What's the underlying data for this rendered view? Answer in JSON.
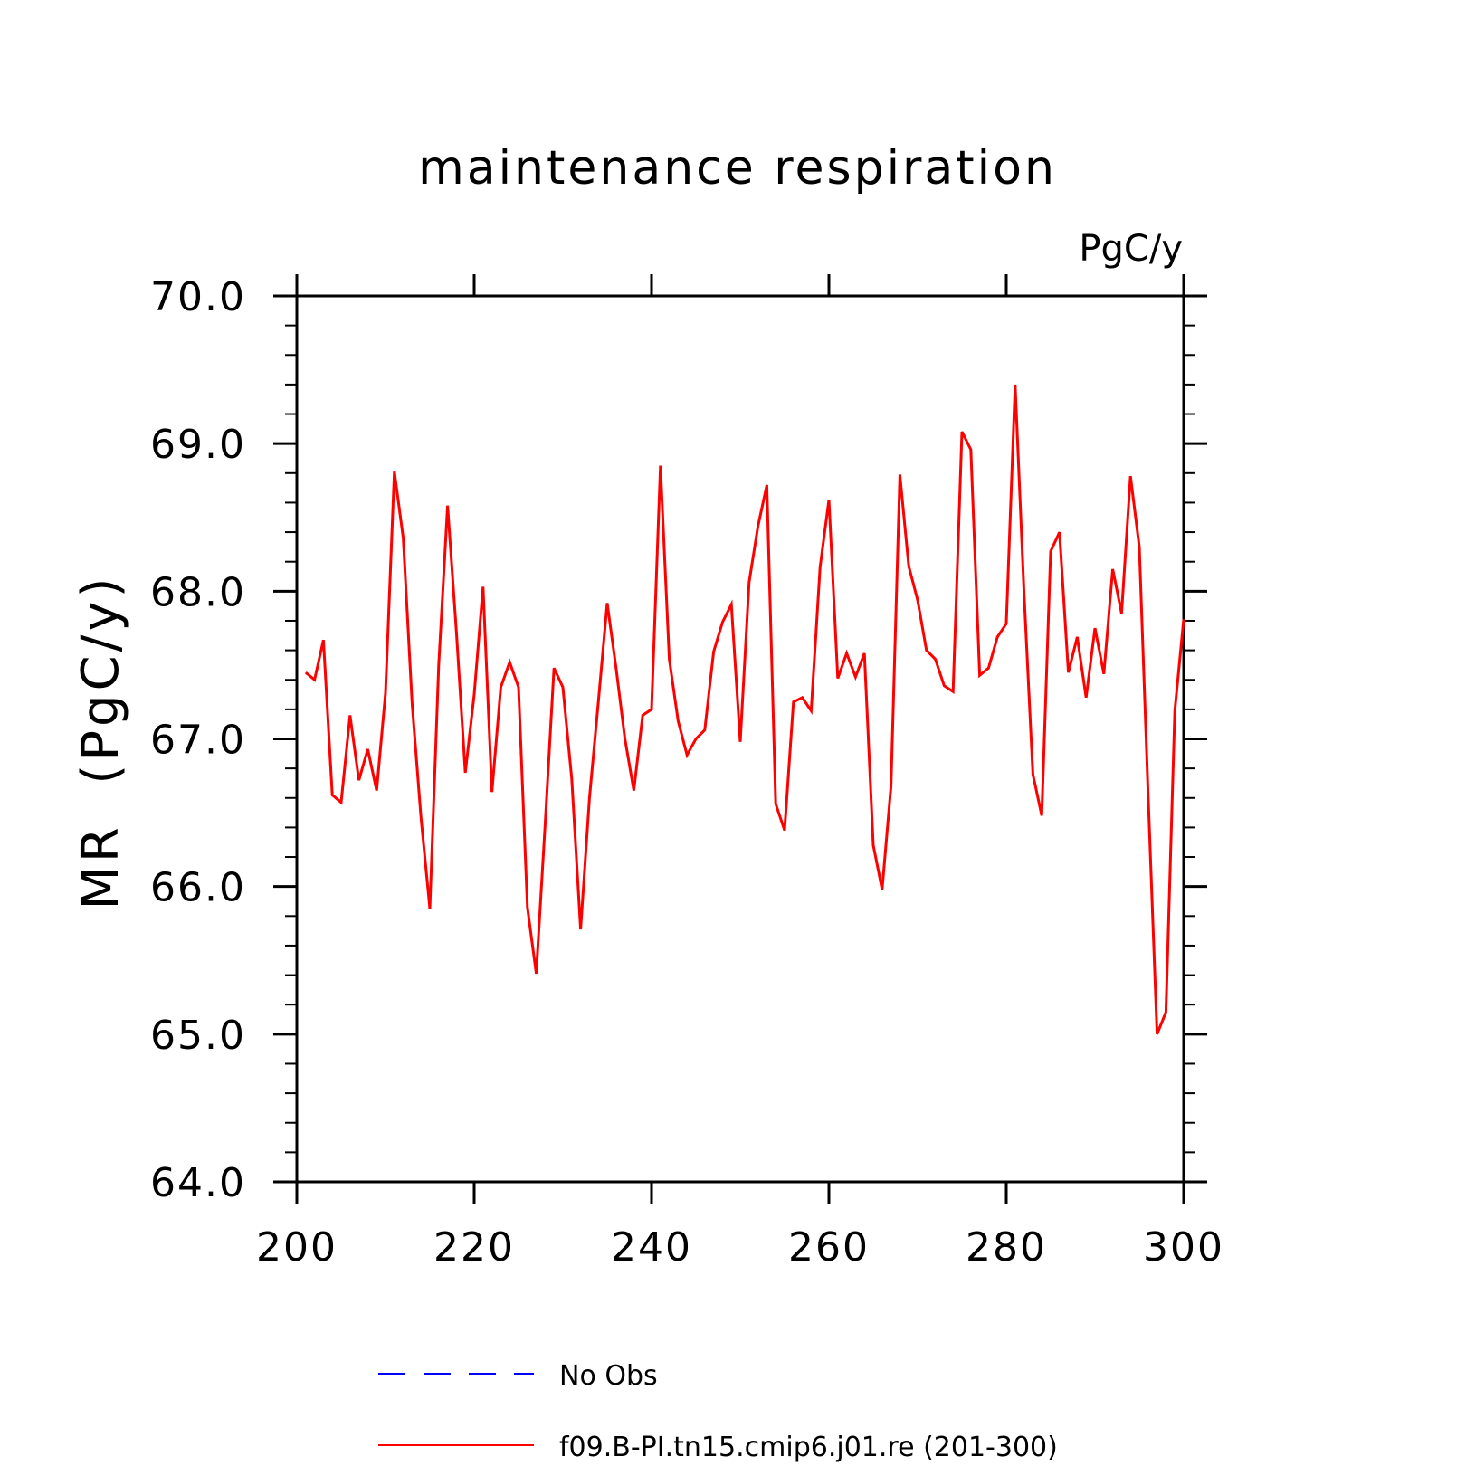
{
  "chart_data": {
    "type": "line",
    "title": "maintenance respiration",
    "units": "PgC/y",
    "ylabel": "MR  (PgC/y)",
    "xlabel": "",
    "xlim": [
      200,
      300
    ],
    "ylim": [
      64.0,
      70.0
    ],
    "x_ticks": [
      "200",
      "220",
      "240",
      "260",
      "280",
      "300"
    ],
    "y_ticks": [
      "64.0",
      "65.0",
      "66.0",
      "67.0",
      "68.0",
      "69.0",
      "70.0"
    ],
    "grid": false,
    "legend_position": "bottom",
    "series": [
      {
        "name": "No Obs",
        "color": "#0000ff",
        "dash": "dashed",
        "x": [],
        "y": []
      },
      {
        "name": "f09.B-PI.tn15.cmip6.j01.re (201-300)",
        "color": "#ff0000",
        "dash": "solid",
        "x": [
          201,
          202,
          203,
          204,
          205,
          206,
          207,
          208,
          209,
          210,
          211,
          212,
          213,
          214,
          215,
          216,
          217,
          218,
          219,
          220,
          221,
          222,
          223,
          224,
          225,
          226,
          227,
          228,
          229,
          230,
          231,
          232,
          233,
          234,
          235,
          236,
          237,
          238,
          239,
          240,
          241,
          242,
          243,
          244,
          245,
          246,
          247,
          248,
          249,
          250,
          251,
          252,
          253,
          254,
          255,
          256,
          257,
          258,
          259,
          260,
          261,
          262,
          263,
          264,
          265,
          266,
          267,
          268,
          269,
          270,
          271,
          272,
          273,
          274,
          275,
          276,
          277,
          278,
          279,
          280,
          281,
          282,
          283,
          284,
          285,
          286,
          287,
          288,
          289,
          290,
          291,
          292,
          293,
          294,
          295,
          296,
          297,
          298,
          299,
          300
        ],
        "y": [
          67.45,
          67.4,
          67.67,
          66.62,
          66.57,
          67.16,
          66.72,
          66.93,
          66.65,
          67.31,
          68.81,
          68.36,
          67.24,
          66.47,
          65.85,
          67.5,
          68.58,
          67.72,
          66.77,
          67.3,
          68.03,
          66.64,
          67.35,
          67.52,
          67.35,
          65.86,
          65.41,
          66.42,
          67.48,
          67.35,
          66.73,
          65.71,
          66.6,
          67.25,
          67.92,
          67.48,
          67.0,
          66.65,
          67.16,
          67.2,
          68.85,
          67.54,
          67.12,
          66.89,
          67.0,
          67.06,
          67.59,
          67.79,
          67.91,
          66.98,
          68.06,
          68.44,
          68.72,
          66.56,
          66.38,
          67.25,
          67.28,
          67.19,
          68.16,
          68.62,
          67.41,
          67.58,
          67.42,
          67.58,
          66.28,
          65.98,
          66.68,
          68.79,
          68.17,
          67.94,
          67.6,
          67.54,
          67.36,
          67.32,
          69.08,
          68.96,
          67.43,
          67.48,
          67.69,
          67.78,
          69.4,
          67.99,
          66.76,
          66.48,
          68.27,
          68.4,
          67.45,
          67.69,
          67.28,
          67.75,
          67.44,
          68.15,
          67.85,
          68.78,
          68.3,
          66.61,
          65.0,
          65.15,
          67.19,
          67.81
        ]
      }
    ]
  }
}
